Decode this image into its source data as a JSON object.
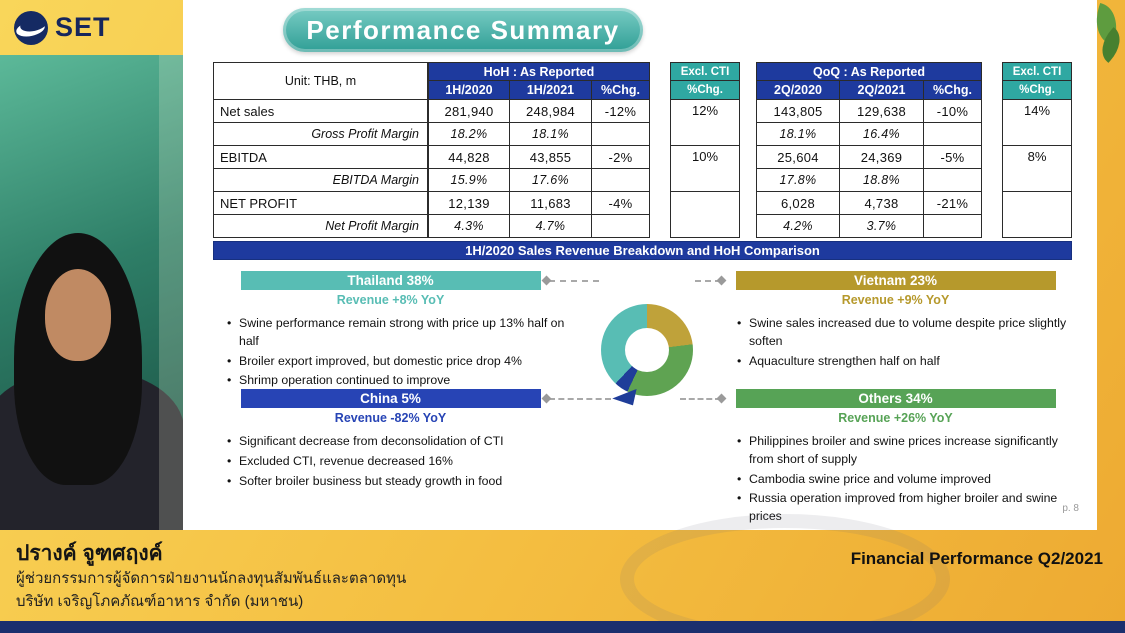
{
  "brand": {
    "logo_text": "SET"
  },
  "slide": {
    "title": "Performance Summary",
    "page_label": "p. 8"
  },
  "table": {
    "unit_label": "Unit: THB, m",
    "groups": {
      "hoh": "HoH : As Reported",
      "qoq": "QoQ : As Reported",
      "excl_cti": "Excl. CTI"
    },
    "subheaders": {
      "hoh": [
        "1H/2020",
        "1H/2021",
        "%Chg."
      ],
      "excl_left": "%Chg.",
      "qoq": [
        "2Q/2020",
        "2Q/2021",
        "%Chg."
      ],
      "excl_right": "%Chg."
    },
    "rows": [
      {
        "label": "Net sales",
        "style": "main",
        "hoh": [
          "281,940",
          "248,984",
          "-12%"
        ],
        "qoq": [
          "143,805",
          "129,638",
          "-10%"
        ]
      },
      {
        "label": "Gross Profit Margin",
        "style": "margin",
        "hoh": [
          "18.2%",
          "18.1%",
          ""
        ],
        "qoq": [
          "18.1%",
          "16.4%",
          ""
        ]
      },
      {
        "label": "EBITDA",
        "style": "main",
        "hoh": [
          "44,828",
          "43,855",
          "-2%"
        ],
        "qoq": [
          "25,604",
          "24,369",
          "-5%"
        ]
      },
      {
        "label": "EBITDA Margin",
        "style": "margin",
        "hoh": [
          "15.9%",
          "17.6%",
          ""
        ],
        "qoq": [
          "17.8%",
          "18.8%",
          ""
        ]
      },
      {
        "label": "NET PROFIT",
        "style": "main",
        "hoh": [
          "12,139",
          "11,683",
          "-4%"
        ],
        "qoq": [
          "6,028",
          "4,738",
          "-21%"
        ]
      },
      {
        "label": "Net Profit Margin",
        "style": "margin",
        "hoh": [
          "4.3%",
          "4.7%",
          ""
        ],
        "qoq": [
          "4.2%",
          "3.7%",
          ""
        ]
      }
    ],
    "excl_cti_values": {
      "hoh": [
        "12%",
        "10%",
        ""
      ],
      "qoq": [
        "14%",
        "8%",
        ""
      ]
    }
  },
  "breakdown": {
    "banner": "1H/2020 Sales Revenue Breakdown and HoH Comparison",
    "regions": [
      {
        "id": "thailand",
        "label": "Thailand 38%",
        "revenue": "Revenue +8% YoY",
        "color": "#58BDB4",
        "bullets": [
          "Swine performance remain strong with price up 13% half on half",
          "Broiler export improved, but domestic price drop 4%",
          "Shrimp operation continued to improve"
        ]
      },
      {
        "id": "vietnam",
        "label": "Vietnam 23%",
        "revenue": "Revenue +9% YoY",
        "color": "#B6992C",
        "bullets": [
          "Swine sales increased due to volume despite price slightly soften",
          "Aquaculture strengthen half on half"
        ]
      },
      {
        "id": "china",
        "label": "China 5%",
        "revenue": "Revenue -82% YoY",
        "color": "#2744B5",
        "bullets": [
          "Significant decrease from deconsolidation of CTI",
          "Excluded CTI, revenue decreased 16%",
          "Softer broiler business but steady growth in food"
        ]
      },
      {
        "id": "others",
        "label": "Others 34%",
        "revenue": "Revenue +26% YoY",
        "color": "#57A356",
        "bullets": [
          "Philippines broiler and swine prices increase significantly from short of supply",
          "Cambodia swine price and volume improved",
          "Russia operation improved from higher broiler and swine prices"
        ]
      }
    ]
  },
  "chart_data": {
    "type": "pie",
    "title": "1H/2020 Sales Revenue Breakdown and HoH Comparison",
    "unit": "%",
    "order": "clockwise-from-top",
    "segments": [
      {
        "label": "Vietnam",
        "value": 23,
        "color": "#BFA23A"
      },
      {
        "label": "Others",
        "value": 34,
        "color": "#5FA352"
      },
      {
        "label": "China",
        "value": 5,
        "color": "#1F3D99"
      },
      {
        "label": "Thailand",
        "value": 38,
        "color": "#58BDB4"
      }
    ]
  },
  "footer": {
    "presenter_name": "ปรางค์ จูฑศฤงค์",
    "presenter_role": "ผู้ช่วยกรรมการผู้จัดการฝ่ายงานนักลงทุนสัมพันธ์และตลาดทุน",
    "presenter_company": "บริษัท เจริญโภคภัณฑ์อาหาร จำกัด (มหาชน)",
    "presentation_title": "Financial Performance Q2/2021"
  }
}
